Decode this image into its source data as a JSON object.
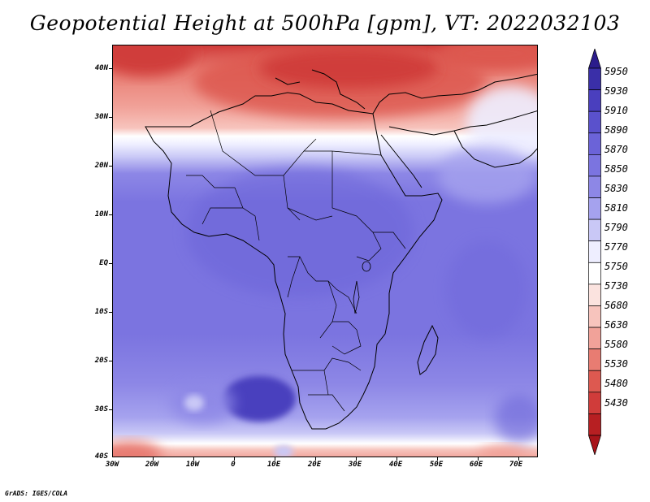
{
  "title": "Geopotential Height at 500hPa [gpm], VT: 2022032103",
  "credit": "GrADS: IGES/COLA",
  "lat_labels": [
    "40N",
    "30N",
    "20N",
    "10N",
    "EQ",
    "10S",
    "20S",
    "30S",
    "40S"
  ],
  "lon_labels": [
    "30W",
    "20W",
    "10W",
    "0",
    "10E",
    "20E",
    "30E",
    "40E",
    "50E",
    "60E",
    "70E"
  ],
  "colorbar": {
    "levels": [
      "5950",
      "5930",
      "5910",
      "5890",
      "5870",
      "5850",
      "5830",
      "5810",
      "5790",
      "5770",
      "5750",
      "5730",
      "5680",
      "5630",
      "5580",
      "5530",
      "5480",
      "5430"
    ],
    "colors": [
      "#2b1c8c",
      "#3a2fa8",
      "#4a3fbe",
      "#5a51cc",
      "#6b63d8",
      "#7b74e0",
      "#8d87e6",
      "#a5a2ee",
      "#c9c8f6",
      "#eeeeff",
      "#ffffff",
      "#fbe3df",
      "#f7c4bd",
      "#f1a299",
      "#e87c72",
      "#dd5950",
      "#d03c3a",
      "#b71f22",
      "#a8141a"
    ]
  },
  "map": {
    "region": "Africa",
    "lon_range": [
      -30,
      75
    ],
    "lat_range": [
      -40,
      45
    ]
  }
}
